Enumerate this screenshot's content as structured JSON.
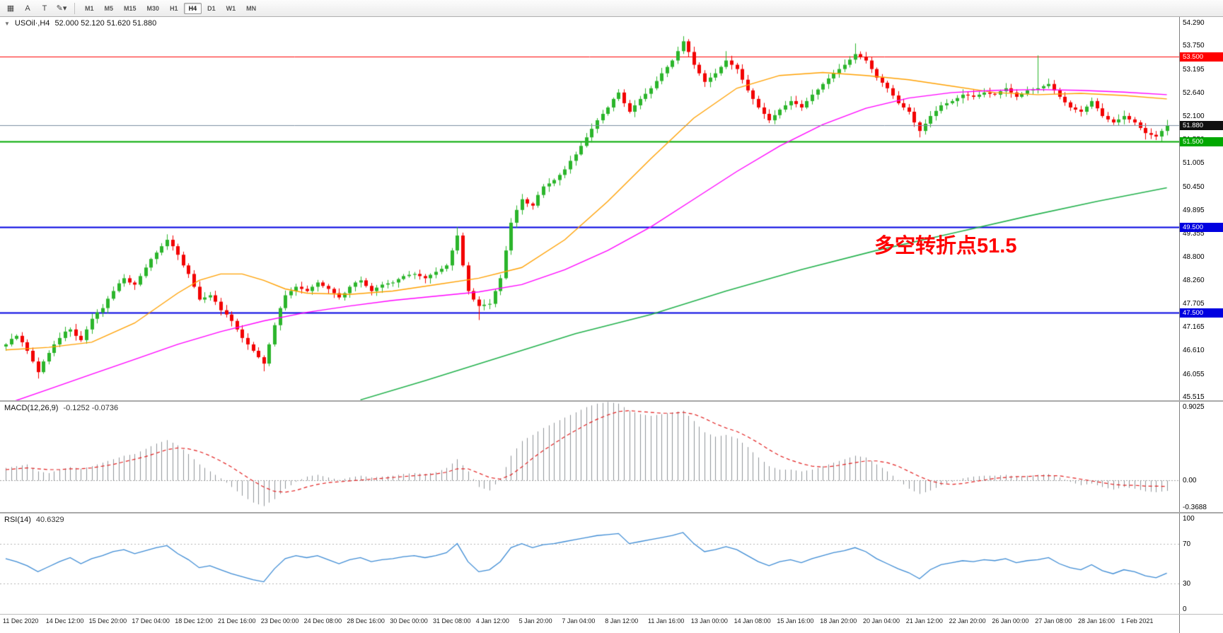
{
  "toolbar": {
    "tools": [
      {
        "name": "chart-grid-tool",
        "glyph": "▦"
      },
      {
        "name": "text-annotation-tool",
        "glyph": "A"
      },
      {
        "name": "text-label-tool",
        "glyph": "T"
      },
      {
        "name": "drawing-tools-dropdown",
        "glyph": "✎",
        "caret": "▾"
      }
    ],
    "timeframes": [
      "M1",
      "M5",
      "M15",
      "M30",
      "H1",
      "H4",
      "D1",
      "W1",
      "MN"
    ],
    "active_timeframe": "H4"
  },
  "main_chart": {
    "title_marker": "▼",
    "symbol_tf": "USOil·,H4",
    "ohlc": "52.000 52.120 51.620 51.880",
    "annotation": "多空转折点51.5"
  },
  "macd_panel": {
    "label": "MACD(12,26,9)",
    "values": "-0.1252 -0.0736"
  },
  "rsi_panel": {
    "label": "RSI(14)",
    "value": "40.6329"
  },
  "chart_data": {
    "type": "candlestick",
    "symbol": "USOil",
    "timeframe": "H4",
    "price_scale": {
      "max": 54.42,
      "min": 45.44
    },
    "price_axis_ticks": [
      {
        "label": "54.290",
        "value": 54.29
      },
      {
        "label": "53.750",
        "value": 53.75
      },
      {
        "label": "53.195",
        "value": 53.195
      },
      {
        "label": "52.640",
        "value": 52.64
      },
      {
        "label": "52.100",
        "value": 52.1
      },
      {
        "label": "51.550",
        "value": 51.55
      },
      {
        "label": "51.005",
        "value": 51.005
      },
      {
        "label": "50.450",
        "value": 50.45
      },
      {
        "label": "49.895",
        "value": 49.895
      },
      {
        "label": "49.355",
        "value": 49.355
      },
      {
        "label": "48.800",
        "value": 48.8
      },
      {
        "label": "48.260",
        "value": 48.26
      },
      {
        "label": "47.705",
        "value": 47.705
      },
      {
        "label": "47.165",
        "value": 47.165
      },
      {
        "label": "46.610",
        "value": 46.61
      },
      {
        "label": "46.055",
        "value": 46.055
      },
      {
        "label": "45.515",
        "value": 45.515
      }
    ],
    "hlines": [
      {
        "price": 53.5,
        "label": "53.500",
        "color": "#ff0000",
        "width": 1
      },
      {
        "price": 51.5,
        "label": "51.500",
        "color": "#00a800",
        "width": 2
      },
      {
        "price": 49.5,
        "label": "49.500",
        "color": "#0000e0",
        "width": 2
      },
      {
        "price": 47.5,
        "label": "47.500",
        "color": "#0000e0",
        "width": 2
      }
    ],
    "current_price": {
      "value": 51.88,
      "label": "51.880",
      "line_color": "#7b8ea1",
      "badge_color": "#101010"
    },
    "colors": {
      "bull": "#2bb52b",
      "bear": "#f20000",
      "macd_hist": "#8f9398",
      "macd_signal": "#e22020",
      "rsi_line": "#3d8bd4",
      "ma_fast": "#ffa000",
      "ma_mid": "#ff00ff",
      "ma_slow": "#22b14c"
    },
    "bars": {
      "first_open": 46.7,
      "closes": [
        46.75,
        46.88,
        46.95,
        46.8,
        46.6,
        46.35,
        46.1,
        46.35,
        46.55,
        46.75,
        46.9,
        47.05,
        47.1,
        46.95,
        46.85,
        47.1,
        47.35,
        47.5,
        47.6,
        47.82,
        48.0,
        48.18,
        48.3,
        48.2,
        48.15,
        48.35,
        48.55,
        48.75,
        48.9,
        49.05,
        49.2,
        49.05,
        48.85,
        48.6,
        48.4,
        48.1,
        47.8,
        47.85,
        47.9,
        47.75,
        47.55,
        47.45,
        47.3,
        47.1,
        46.9,
        46.75,
        46.6,
        46.45,
        46.3,
        46.75,
        47.2,
        47.6,
        47.9,
        48.0,
        48.1,
        48.05,
        48.0,
        48.1,
        48.2,
        48.12,
        48.05,
        47.95,
        47.85,
        47.95,
        48.1,
        48.2,
        48.25,
        48.12,
        48.0,
        48.08,
        48.15,
        48.18,
        48.2,
        48.28,
        48.35,
        48.38,
        48.4,
        48.35,
        48.3,
        48.38,
        48.45,
        48.52,
        48.6,
        48.95,
        49.3,
        48.6,
        48.0,
        47.8,
        47.65,
        47.68,
        47.7,
        48.0,
        48.3,
        48.95,
        49.6,
        49.9,
        50.15,
        50.05,
        50.0,
        50.25,
        50.45,
        50.52,
        50.6,
        50.72,
        50.85,
        51.05,
        51.2,
        51.4,
        51.6,
        51.8,
        52.0,
        52.15,
        52.3,
        52.5,
        52.65,
        52.4,
        52.2,
        52.35,
        52.5,
        52.62,
        52.75,
        52.92,
        53.1,
        53.25,
        53.4,
        53.62,
        53.85,
        53.6,
        53.3,
        53.1,
        52.9,
        53.0,
        53.1,
        53.25,
        53.4,
        53.3,
        53.2,
        52.95,
        52.7,
        52.5,
        52.3,
        52.15,
        52.0,
        52.12,
        52.25,
        52.35,
        52.45,
        52.38,
        52.3,
        52.45,
        52.6,
        52.72,
        52.85,
        52.98,
        53.1,
        53.2,
        53.3,
        53.42,
        53.55,
        53.48,
        53.4,
        53.2,
        53.0,
        52.88,
        52.75,
        52.58,
        52.4,
        52.3,
        52.2,
        51.95,
        51.75,
        51.92,
        52.1,
        52.22,
        52.35,
        52.4,
        52.45,
        52.52,
        52.6,
        52.58,
        52.55,
        52.6,
        52.65,
        52.62,
        52.6,
        52.68,
        52.75,
        52.65,
        52.55,
        52.62,
        52.7,
        52.72,
        52.75,
        52.8,
        52.85,
        52.7,
        52.55,
        52.42,
        52.3,
        52.25,
        52.2,
        52.32,
        52.45,
        52.28,
        52.1,
        52.02,
        51.95,
        52.02,
        52.1,
        52.02,
        51.95,
        51.82,
        51.7,
        51.66,
        51.62,
        51.75,
        51.88
      ],
      "wick_overrides": {
        "6": {
          "low": 45.95
        },
        "48": {
          "low": 46.12
        },
        "84": {
          "high": 49.5
        },
        "88": {
          "low": 47.32
        },
        "126": {
          "high": 53.97
        },
        "134": {
          "high": 53.62
        },
        "158": {
          "high": 53.8
        },
        "170": {
          "low": 51.6
        },
        "192": {
          "high": 53.52
        },
        "212": {
          "low": 51.55
        }
      }
    },
    "moving_averages": [
      {
        "name": "ma-fast-orange",
        "color_key": "ma_fast",
        "width": 1.4,
        "points": [
          [
            0,
            46.62
          ],
          [
            8,
            46.68
          ],
          [
            16,
            46.8
          ],
          [
            24,
            47.25
          ],
          [
            32,
            47.95
          ],
          [
            36,
            48.25
          ],
          [
            40,
            48.4
          ],
          [
            44,
            48.4
          ],
          [
            48,
            48.25
          ],
          [
            52,
            48.05
          ],
          [
            56,
            47.95
          ],
          [
            64,
            47.92
          ],
          [
            72,
            48.0
          ],
          [
            80,
            48.15
          ],
          [
            88,
            48.3
          ],
          [
            96,
            48.55
          ],
          [
            104,
            49.2
          ],
          [
            112,
            50.1
          ],
          [
            120,
            51.1
          ],
          [
            128,
            52.05
          ],
          [
            136,
            52.75
          ],
          [
            144,
            53.05
          ],
          [
            152,
            53.12
          ],
          [
            160,
            53.05
          ],
          [
            168,
            52.95
          ],
          [
            176,
            52.8
          ],
          [
            184,
            52.65
          ],
          [
            192,
            52.6
          ],
          [
            200,
            52.63
          ],
          [
            208,
            52.58
          ],
          [
            216,
            52.5
          ]
        ]
      },
      {
        "name": "ma-mid-magenta",
        "color_key": "ma_mid",
        "width": 1.4,
        "points": [
          [
            0,
            45.35
          ],
          [
            8,
            45.7
          ],
          [
            16,
            46.05
          ],
          [
            24,
            46.4
          ],
          [
            32,
            46.75
          ],
          [
            40,
            47.05
          ],
          [
            48,
            47.3
          ],
          [
            56,
            47.5
          ],
          [
            64,
            47.65
          ],
          [
            72,
            47.78
          ],
          [
            80,
            47.88
          ],
          [
            88,
            47.98
          ],
          [
            96,
            48.15
          ],
          [
            104,
            48.5
          ],
          [
            112,
            48.95
          ],
          [
            120,
            49.5
          ],
          [
            128,
            50.15
          ],
          [
            136,
            50.8
          ],
          [
            144,
            51.4
          ],
          [
            152,
            51.9
          ],
          [
            160,
            52.28
          ],
          [
            168,
            52.52
          ],
          [
            176,
            52.65
          ],
          [
            184,
            52.7
          ],
          [
            192,
            52.72
          ],
          [
            200,
            52.7
          ],
          [
            208,
            52.66
          ],
          [
            216,
            52.6
          ]
        ]
      },
      {
        "name": "ma-slow-green",
        "color_key": "ma_slow",
        "width": 1.6,
        "points": [
          [
            66,
            45.45
          ],
          [
            78,
            45.9
          ],
          [
            92,
            46.45
          ],
          [
            106,
            47.0
          ],
          [
            120,
            47.45
          ],
          [
            134,
            48.0
          ],
          [
            148,
            48.5
          ],
          [
            162,
            48.95
          ],
          [
            176,
            49.35
          ],
          [
            190,
            49.75
          ],
          [
            203,
            50.1
          ],
          [
            216,
            50.42
          ]
        ]
      }
    ],
    "macd": {
      "sample_step": 2,
      "scale": {
        "max": 0.9025,
        "min": -0.3688
      },
      "axis_ticks": [
        {
          "label": "0.9025",
          "value": 0.9025
        },
        {
          "label": "0.00",
          "value": 0
        },
        {
          "label": "-0.3688",
          "value": -0.3688
        }
      ],
      "hist": [
        0.14,
        0.16,
        0.18,
        0.1,
        0.08,
        0.12,
        0.15,
        0.13,
        0.16,
        0.2,
        0.24,
        0.28,
        0.3,
        0.36,
        0.42,
        0.46,
        0.4,
        0.3,
        0.18,
        0.1,
        0.02,
        -0.08,
        -0.18,
        -0.26,
        -0.3,
        -0.22,
        -0.1,
        -0.02,
        0.04,
        0.06,
        0.03,
        0.0,
        0.03,
        0.05,
        0.03,
        0.04,
        0.05,
        0.07,
        0.08,
        0.07,
        0.09,
        0.14,
        0.24,
        0.1,
        -0.08,
        -0.12,
        0.02,
        0.28,
        0.45,
        0.52,
        0.6,
        0.66,
        0.72,
        0.78,
        0.84,
        0.88,
        0.9,
        0.88,
        0.8,
        0.76,
        0.74,
        0.76,
        0.78,
        0.8,
        0.68,
        0.55,
        0.5,
        0.52,
        0.48,
        0.38,
        0.26,
        0.16,
        0.12,
        0.12,
        0.1,
        0.12,
        0.16,
        0.2,
        0.24,
        0.28,
        0.26,
        0.18,
        0.1,
        0.0,
        -0.1,
        -0.16,
        -0.12,
        -0.06,
        -0.02,
        0.02,
        0.04,
        0.05,
        0.05,
        0.06,
        0.04,
        0.05,
        0.06,
        0.07,
        0.03,
        -0.02,
        -0.06,
        -0.04,
        -0.08,
        -0.11,
        -0.08,
        -0.1,
        -0.13,
        -0.14,
        -0.1252
      ],
      "signal": [
        0.12,
        0.13,
        0.14,
        0.13,
        0.12,
        0.12,
        0.13,
        0.13,
        0.14,
        0.16,
        0.18,
        0.21,
        0.24,
        0.27,
        0.31,
        0.35,
        0.37,
        0.36,
        0.33,
        0.28,
        0.22,
        0.15,
        0.07,
        -0.01,
        -0.08,
        -0.13,
        -0.14,
        -0.12,
        -0.08,
        -0.05,
        -0.03,
        -0.02,
        -0.01,
        0.0,
        0.01,
        0.02,
        0.03,
        0.04,
        0.05,
        0.06,
        0.07,
        0.09,
        0.13,
        0.13,
        0.08,
        0.03,
        0.01,
        0.06,
        0.15,
        0.25,
        0.34,
        0.42,
        0.5,
        0.57,
        0.64,
        0.7,
        0.75,
        0.79,
        0.8,
        0.79,
        0.78,
        0.77,
        0.77,
        0.78,
        0.76,
        0.71,
        0.65,
        0.6,
        0.56,
        0.5,
        0.43,
        0.35,
        0.28,
        0.23,
        0.19,
        0.16,
        0.15,
        0.16,
        0.18,
        0.2,
        0.22,
        0.22,
        0.2,
        0.16,
        0.1,
        0.04,
        -0.01,
        -0.04,
        -0.05,
        -0.04,
        -0.02,
        0.0,
        0.02,
        0.03,
        0.04,
        0.04,
        0.05,
        0.05,
        0.05,
        0.03,
        0.01,
        -0.01,
        -0.03,
        -0.05,
        -0.06,
        -0.06,
        -0.07,
        -0.07,
        -0.0736
      ]
    },
    "rsi": {
      "sample_step": 2,
      "scale": {
        "max": 100,
        "min": 0
      },
      "axis_ticks": [
        {
          "label": "100",
          "value": 100
        },
        {
          "label": "70",
          "value": 70
        },
        {
          "label": "30",
          "value": 30
        },
        {
          "label": "0",
          "value": 0
        }
      ],
      "levels": [
        70,
        30
      ],
      "values": [
        55,
        52,
        48,
        42,
        47,
        52,
        56,
        50,
        55,
        58,
        62,
        64,
        60,
        63,
        66,
        68,
        60,
        54,
        46,
        48,
        44,
        40,
        37,
        34,
        32,
        45,
        55,
        58,
        56,
        58,
        54,
        50,
        54,
        56,
        52,
        54,
        55,
        57,
        58,
        56,
        58,
        61,
        70,
        52,
        42,
        44,
        52,
        66,
        70,
        66,
        69,
        70,
        72,
        74,
        76,
        78,
        79,
        80,
        70,
        72,
        74,
        76,
        78,
        81,
        70,
        62,
        64,
        67,
        64,
        58,
        52,
        48,
        52,
        54,
        51,
        55,
        58,
        61,
        63,
        66,
        62,
        55,
        50,
        45,
        41,
        35,
        44,
        49,
        51,
        53,
        52,
        54,
        53,
        55,
        51,
        53,
        54,
        56,
        50,
        46,
        44,
        49,
        43,
        40,
        44,
        42,
        38,
        36,
        40.63
      ]
    },
    "time_labels": [
      {
        "bar": 0,
        "text": "11 Dec 2020"
      },
      {
        "bar": 8,
        "text": "14 Dec 12:00"
      },
      {
        "bar": 16,
        "text": "15 Dec 20:00"
      },
      {
        "bar": 24,
        "text": "17 Dec 04:00"
      },
      {
        "bar": 32,
        "text": "18 Dec 12:00"
      },
      {
        "bar": 40,
        "text": "21 Dec 16:00"
      },
      {
        "bar": 48,
        "text": "23 Dec 00:00"
      },
      {
        "bar": 56,
        "text": "24 Dec 08:00"
      },
      {
        "bar": 64,
        "text": "28 Dec 16:00"
      },
      {
        "bar": 72,
        "text": "30 Dec 00:00"
      },
      {
        "bar": 80,
        "text": "31 Dec 08:00"
      },
      {
        "bar": 88,
        "text": "4 Jan 12:00"
      },
      {
        "bar": 96,
        "text": "5 Jan 20:00"
      },
      {
        "bar": 104,
        "text": "7 Jan 04:00"
      },
      {
        "bar": 112,
        "text": "8 Jan 12:00"
      },
      {
        "bar": 120,
        "text": "11 Jan 16:00"
      },
      {
        "bar": 128,
        "text": "13 Jan 00:00"
      },
      {
        "bar": 136,
        "text": "14 Jan 08:00"
      },
      {
        "bar": 144,
        "text": "15 Jan 16:00"
      },
      {
        "bar": 152,
        "text": "18 Jan 20:00"
      },
      {
        "bar": 160,
        "text": "20 Jan 04:00"
      },
      {
        "bar": 168,
        "text": "21 Jan 12:00"
      },
      {
        "bar": 176,
        "text": "22 Jan 20:00"
      },
      {
        "bar": 184,
        "text": "26 Jan 00:00"
      },
      {
        "bar": 192,
        "text": "27 Jan 08:00"
      },
      {
        "bar": 200,
        "text": "28 Jan 16:00"
      },
      {
        "bar": 208,
        "text": "1 Feb 2021"
      }
    ]
  }
}
